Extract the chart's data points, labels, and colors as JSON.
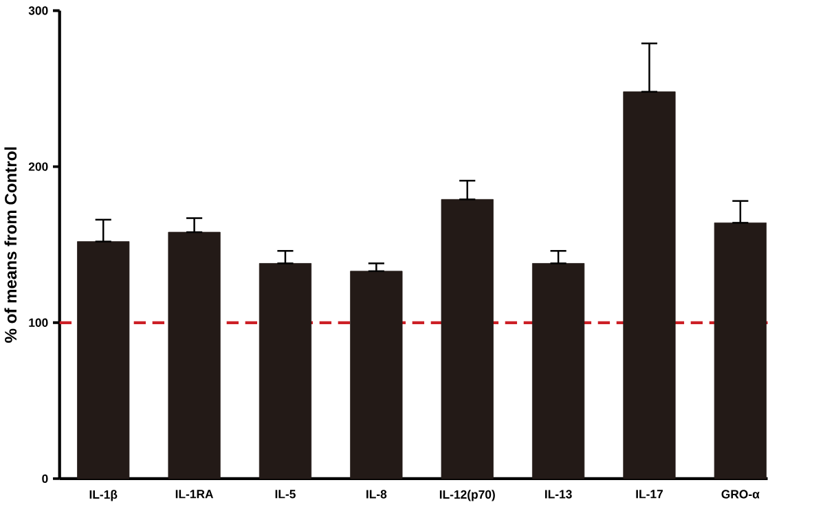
{
  "chart_data": {
    "type": "bar",
    "ylabel": "% of means from Control",
    "categories": [
      "IL-1β",
      "IL-1RA",
      "IL-5",
      "IL-8",
      "IL-12(p70)",
      "IL-13",
      "IL-17",
      "GRO-α"
    ],
    "values": [
      152,
      158,
      138,
      133,
      179,
      138,
      248,
      164
    ],
    "errors": [
      [
        152,
        166
      ],
      [
        158,
        167
      ],
      [
        138,
        146
      ],
      [
        133,
        138
      ],
      [
        179,
        191
      ],
      [
        138,
        146
      ],
      [
        248,
        279
      ],
      [
        164,
        178
      ]
    ],
    "color": "#231a17",
    "ylim": [
      0,
      300
    ],
    "yticks": [
      0,
      100,
      200,
      300
    ],
    "ref_lines": [
      {
        "axis": "y",
        "value": 100,
        "color": "#cc1f26",
        "line_style": "dashed"
      }
    ],
    "grid": false
  }
}
